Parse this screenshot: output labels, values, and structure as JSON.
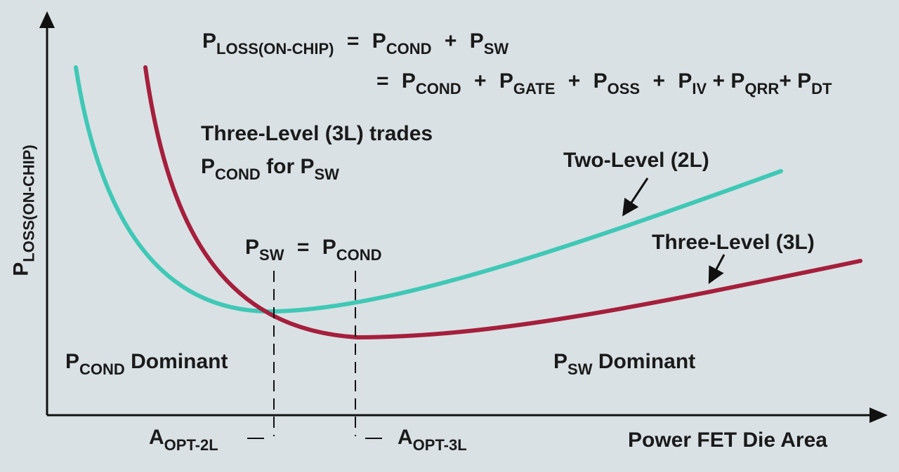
{
  "colors": {
    "background": "#d9e1e4",
    "two_level_curve": "#40c8b6",
    "three_level_curve": "#a51f3c",
    "axis": "#111111",
    "text": "#1a1a1a"
  },
  "equation": {
    "line1": {
      "lhs_p": "P",
      "lhs_sub": "LOSS(ON-CHIP)",
      "eq": "=",
      "t1_p": "P",
      "t1_sub": "COND",
      "plus": "+",
      "t2_p": "P",
      "t2_sub": "SW"
    },
    "line2": {
      "eq": "=",
      "t1_p": "P",
      "t1_sub": "COND",
      "plus1": "+",
      "t2_p": "P",
      "t2_sub": "GATE",
      "plus2": "+",
      "t3_p": "P",
      "t3_sub": "OSS",
      "plus3": "+",
      "t4_p": "P",
      "t4_sub": "IV",
      "plus4": "+",
      "t5_p": "P",
      "t5_sub": "QRR",
      "plus5": "+",
      "t6_p": "P",
      "t6_sub": "DT"
    }
  },
  "trade_note": {
    "line1": "Three-Level (3L) trades",
    "p1": "P",
    "p1_sub": "COND",
    "mid": "for",
    "p2": "P",
    "p2_sub": "SW"
  },
  "labels": {
    "two_level": "Two-Level (2L)",
    "three_level": "Three-Level (3L)",
    "balance": {
      "p1": "P",
      "p1_sub": "SW",
      "eq": "=",
      "p2": "P",
      "p2_sub": "COND"
    },
    "cond_dominant": {
      "p": "P",
      "sub": "COND",
      "text": "Dominant"
    },
    "sw_dominant": {
      "p": "P",
      "sub": "SW",
      "text": "Dominant"
    },
    "aopt_2l": {
      "a": "A",
      "sub": "OPT-2L"
    },
    "aopt_3l": {
      "a": "A",
      "sub": "OPT-3L"
    }
  },
  "axes": {
    "y_label": {
      "p": "P",
      "sub": "LOSS(ON-CHIP)"
    },
    "x_label": "Power FET Die Area"
  }
}
